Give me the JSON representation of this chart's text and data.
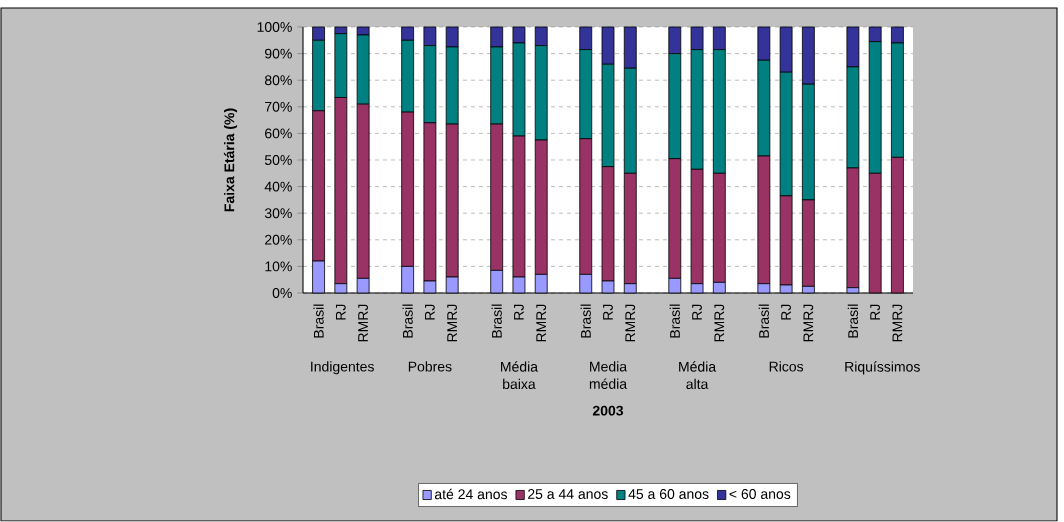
{
  "chart_data": {
    "type": "bar",
    "stacked": true,
    "xlabel": "2003",
    "ylabel": "Faixa Etária (%)",
    "categories": [
      "Brasil",
      "RJ",
      "RMRJ",
      "Brasil",
      "RJ",
      "RMRJ",
      "Brasil",
      "RJ",
      "RMRJ",
      "Brasil",
      "RJ",
      "RMRJ",
      "Brasil",
      "RJ",
      "RMRJ",
      "Brasil",
      "RJ",
      "RMRJ",
      "Brasil",
      "RJ",
      "RMRJ"
    ],
    "annotations": [
      "Indigentes",
      "Pobres",
      "Média baixa",
      "Media média",
      "Média alta",
      "Ricos",
      "Riquíssimos"
    ],
    "series": [
      {
        "name": "até 24 anos",
        "color": "#9999ff",
        "values": [
          12,
          3.5,
          5.5,
          10,
          4.5,
          6,
          8.5,
          6,
          7,
          7,
          4.5,
          3.5,
          5.5,
          3.5,
          4,
          3.5,
          3,
          2.5,
          2,
          0,
          0
        ]
      },
      {
        "name": "25 a 44 anos",
        "color": "#993366",
        "values": [
          56.5,
          70,
          65.5,
          58,
          59.5,
          57.5,
          55,
          53,
          50.5,
          51,
          43,
          41.5,
          45,
          43,
          41,
          48,
          33.5,
          32.5,
          45,
          45,
          51
        ]
      },
      {
        "name": "45 a 60 anos",
        "color": "#008080",
        "values": [
          26.5,
          24,
          26,
          27,
          29,
          29,
          29,
          35,
          35.5,
          33.5,
          38.5,
          39.5,
          39.5,
          45,
          46.5,
          36,
          46.5,
          43.5,
          38,
          49.5,
          43
        ]
      },
      {
        "name": "< 60 anos",
        "color": "#333399",
        "values": [
          5,
          2.5,
          3,
          5,
          7,
          7.5,
          7.5,
          6,
          7,
          8.5,
          14,
          15.5,
          10,
          8.5,
          8.5,
          12.5,
          17,
          21.5,
          15,
          5.5,
          6
        ]
      }
    ],
    "ylim": [
      0,
      100
    ],
    "yticks": [
      {
        "value": 0,
        "label": "0%"
      },
      {
        "value": 10,
        "label": "10%"
      },
      {
        "value": 20,
        "label": "20%"
      },
      {
        "value": 30,
        "label": "30%"
      },
      {
        "value": 40,
        "label": "40%"
      },
      {
        "value": 50,
        "label": "50%"
      },
      {
        "value": 60,
        "label": "60%"
      },
      {
        "value": 70,
        "label": "70%"
      },
      {
        "value": 80,
        "label": "80%"
      },
      {
        "value": 90,
        "label": "90%"
      },
      {
        "value": 100,
        "label": "100%"
      }
    ],
    "grid": "y",
    "legend": "bottom"
  }
}
